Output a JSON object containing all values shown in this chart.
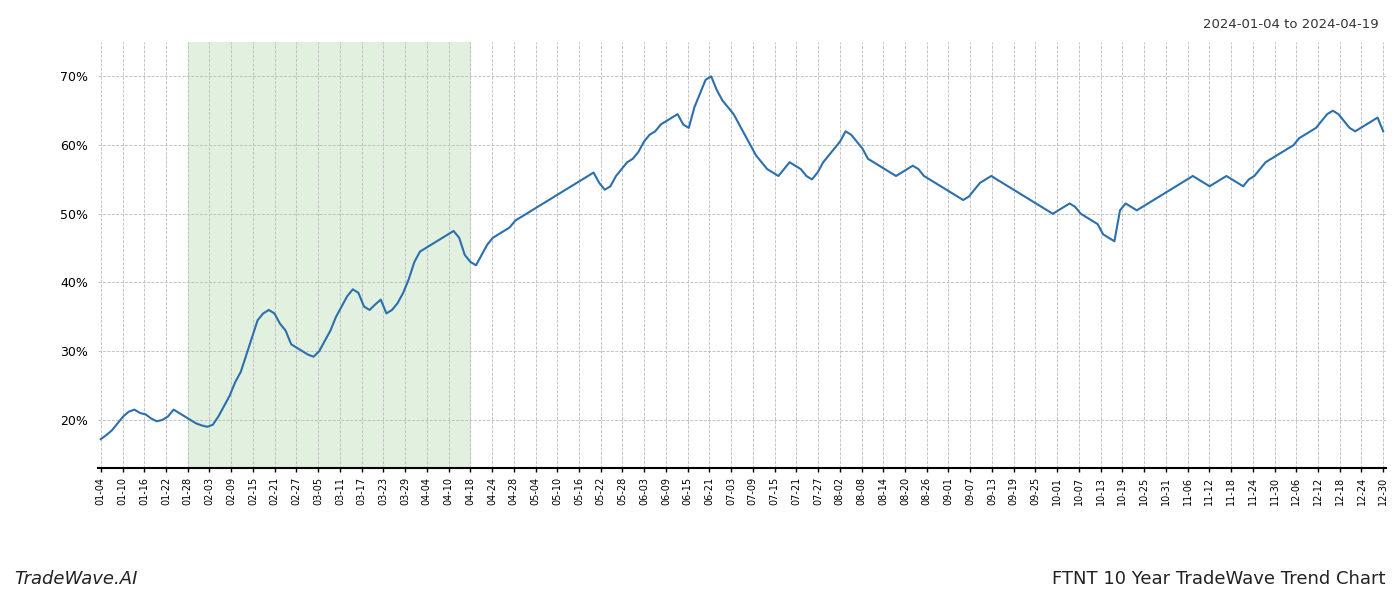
{
  "title_top_right": "2024-01-04 to 2024-04-19",
  "title_bottom_left": "TradeWave.AI",
  "title_bottom_right": "FTNT 10 Year TradeWave Trend Chart",
  "line_color": "#2c6fad",
  "line_width": 1.5,
  "shade_color": "#d6ecd2",
  "shade_alpha": 0.7,
  "background_color": "#ffffff",
  "grid_color": "#bbbbbb",
  "ylim": [
    13,
    75
  ],
  "yticks": [
    20,
    30,
    40,
    50,
    60,
    70
  ],
  "x_labels": [
    "01-04",
    "01-10",
    "01-16",
    "01-22",
    "01-28",
    "02-03",
    "02-09",
    "02-15",
    "02-21",
    "02-27",
    "03-05",
    "03-11",
    "03-17",
    "03-23",
    "03-29",
    "04-04",
    "04-10",
    "04-18",
    "04-24",
    "04-28",
    "05-04",
    "05-10",
    "05-16",
    "05-22",
    "05-28",
    "06-03",
    "06-09",
    "06-15",
    "06-21",
    "07-03",
    "07-09",
    "07-15",
    "07-21",
    "07-27",
    "08-02",
    "08-08",
    "08-14",
    "08-20",
    "08-26",
    "09-01",
    "09-07",
    "09-13",
    "09-19",
    "09-25",
    "10-01",
    "10-07",
    "10-13",
    "10-19",
    "10-25",
    "10-31",
    "11-06",
    "11-12",
    "11-18",
    "11-24",
    "11-30",
    "12-06",
    "12-12",
    "12-18",
    "12-24",
    "12-30"
  ],
  "values": [
    17.2,
    17.8,
    18.5,
    19.5,
    20.5,
    21.2,
    21.5,
    21.0,
    20.8,
    20.2,
    19.8,
    20.0,
    20.5,
    21.5,
    21.0,
    20.5,
    20.0,
    19.5,
    19.2,
    19.0,
    19.3,
    20.5,
    22.0,
    23.5,
    25.5,
    27.0,
    29.5,
    32.0,
    34.5,
    35.5,
    36.0,
    35.5,
    34.0,
    33.0,
    31.0,
    30.5,
    30.0,
    29.5,
    29.2,
    30.0,
    31.5,
    33.0,
    35.0,
    36.5,
    38.0,
    39.0,
    38.5,
    36.5,
    36.0,
    36.8,
    37.5,
    35.5,
    36.0,
    37.0,
    38.5,
    40.5,
    43.0,
    44.5,
    45.0,
    45.5,
    46.0,
    46.5,
    47.0,
    47.5,
    46.5,
    44.0,
    43.0,
    42.5,
    44.0,
    45.5,
    46.5,
    47.0,
    47.5,
    48.0,
    49.0,
    49.5,
    50.0,
    50.5,
    51.0,
    51.5,
    52.0,
    52.5,
    53.0,
    53.5,
    54.0,
    54.5,
    55.0,
    55.5,
    56.0,
    54.5,
    53.5,
    54.0,
    55.5,
    56.5,
    57.5,
    58.0,
    59.0,
    60.5,
    61.5,
    62.0,
    63.0,
    63.5,
    64.0,
    64.5,
    63.0,
    62.5,
    65.5,
    67.5,
    69.5,
    70.0,
    68.0,
    66.5,
    65.5,
    64.5,
    63.0,
    61.5,
    60.0,
    58.5,
    57.5,
    56.5,
    56.0,
    55.5,
    56.5,
    57.5,
    57.0,
    56.5,
    55.5,
    55.0,
    56.0,
    57.5,
    58.5,
    59.5,
    60.5,
    62.0,
    61.5,
    60.5,
    59.5,
    58.0,
    57.5,
    57.0,
    56.5,
    56.0,
    55.5,
    56.0,
    56.5,
    57.0,
    56.5,
    55.5,
    55.0,
    54.5,
    54.0,
    53.5,
    53.0,
    52.5,
    52.0,
    52.5,
    53.5,
    54.5,
    55.0,
    55.5,
    55.0,
    54.5,
    54.0,
    53.5,
    53.0,
    52.5,
    52.0,
    51.5,
    51.0,
    50.5,
    50.0,
    50.5,
    51.0,
    51.5,
    51.0,
    50.0,
    49.5,
    49.0,
    48.5,
    47.0,
    46.5,
    46.0,
    50.5,
    51.5,
    51.0,
    50.5,
    51.0,
    51.5,
    52.0,
    52.5,
    53.0,
    53.5,
    54.0,
    54.5,
    55.0,
    55.5,
    55.0,
    54.5,
    54.0,
    54.5,
    55.0,
    55.5,
    55.0,
    54.5,
    54.0,
    55.0,
    55.5,
    56.5,
    57.5,
    58.0,
    58.5,
    59.0,
    59.5,
    60.0,
    61.0,
    61.5,
    62.0,
    62.5,
    63.5,
    64.5,
    65.0,
    64.5,
    63.5,
    62.5,
    62.0,
    62.5,
    63.0,
    63.5,
    64.0,
    62.0
  ],
  "shade_start_label": "01-28",
  "shade_end_label": "04-18",
  "n_ticks": 60
}
